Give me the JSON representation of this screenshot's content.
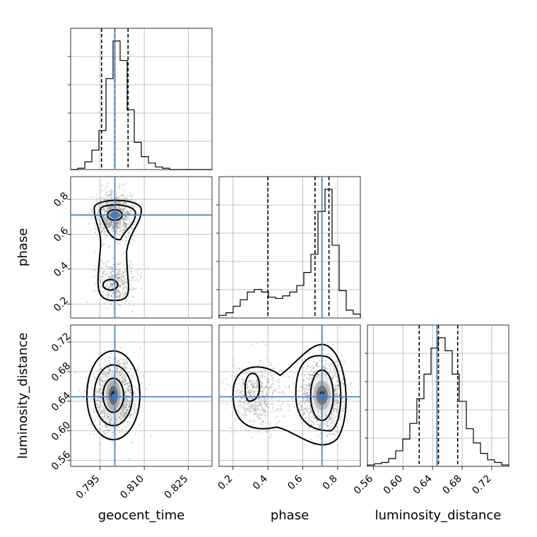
{
  "chart_data": {
    "type": "corner",
    "parameters": [
      "geocent_time",
      "phase",
      "luminosity_distance"
    ],
    "truths": {
      "geocent_time": 0.8,
      "phase": 0.71,
      "luminosity_distance": 0.646
    },
    "ranges": {
      "geocent_time": [
        0.785,
        0.833
      ],
      "phase": [
        0.12,
        0.93
      ],
      "luminosity_distance": [
        0.552,
        0.743
      ]
    },
    "ticks": {
      "geocent_time": [
        "0.795",
        "0.810",
        "0.825"
      ],
      "phase": [
        "0.2",
        "0.4",
        "0.6",
        "0.8"
      ],
      "luminosity_distance": [
        "0.56",
        "0.60",
        "0.64",
        "0.68",
        "0.72"
      ]
    },
    "quantiles": {
      "geocent_time": [
        0.7955,
        0.8,
        0.8045
      ],
      "phase": [
        0.4,
        0.67,
        0.75
      ],
      "luminosity_distance": [
        0.622,
        0.648,
        0.674
      ]
    },
    "histograms": {
      "geocent_time": {
        "range": [
          0.785,
          0.833
        ],
        "counts": [
          0,
          1,
          6,
          15,
          30,
          70,
          99,
          84,
          46,
          21,
          10,
          5,
          2,
          1,
          0,
          0,
          0,
          0,
          0,
          0
        ]
      },
      "phase": {
        "range": [
          0.12,
          0.93
        ],
        "counts": [
          2,
          4,
          9,
          14,
          20,
          22,
          20,
          16,
          15,
          17,
          20,
          25,
          35,
          49,
          82,
          99,
          56,
          21,
          6,
          3
        ]
      },
      "luminosity_distance": {
        "range": [
          0.552,
          0.743
        ],
        "counts": [
          1,
          2,
          3,
          6,
          12,
          21,
          33,
          52,
          71,
          91,
          99,
          89,
          71,
          50,
          29,
          18,
          10,
          5,
          3,
          1
        ]
      }
    },
    "grid": true
  }
}
